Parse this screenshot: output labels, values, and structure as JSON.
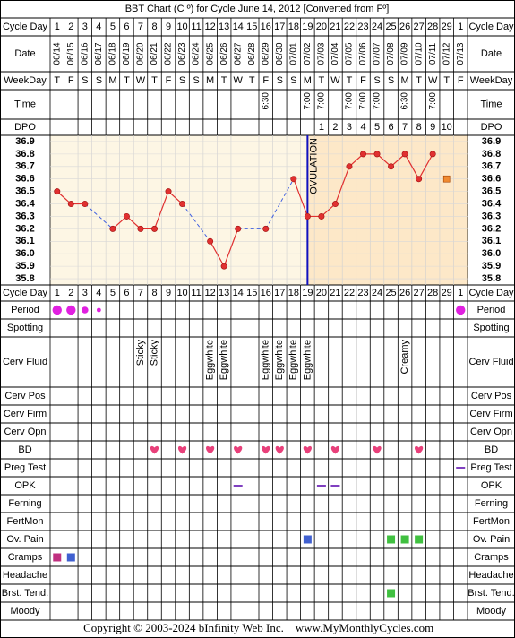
{
  "title": "BBT Chart (C º) for Cycle June 14, 2012  [Converted from Fº]",
  "row_labels": {
    "cycle_day": "Cycle Day",
    "date": "Date",
    "weekday": "WeekDay",
    "time": "Time",
    "dpo": "DPO"
  },
  "cycle_days": [
    1,
    2,
    3,
    4,
    5,
    6,
    7,
    8,
    9,
    10,
    11,
    12,
    13,
    14,
    15,
    16,
    17,
    18,
    19,
    20,
    21,
    22,
    23,
    24,
    25,
    26,
    27,
    28,
    29,
    1
  ],
  "dates": [
    "06/14",
    "06/15",
    "06/16",
    "06/17",
    "06/18",
    "06/19",
    "06/20",
    "06/21",
    "06/22",
    "06/23",
    "06/24",
    "06/25",
    "06/26",
    "06/27",
    "06/28",
    "06/29",
    "06/30",
    "07/01",
    "07/02",
    "07/03",
    "07/04",
    "07/05",
    "07/06",
    "07/07",
    "07/08",
    "07/09",
    "07/10",
    "07/11",
    "07/12",
    "07/13"
  ],
  "weekdays": [
    "T",
    "F",
    "S",
    "S",
    "M",
    "T",
    "W",
    "T",
    "F",
    "S",
    "S",
    "M",
    "T",
    "W",
    "T",
    "F",
    "S",
    "S",
    "M",
    "T",
    "W",
    "T",
    "F",
    "S",
    "S",
    "M",
    "T",
    "W",
    "T",
    "F"
  ],
  "times": [
    null,
    null,
    null,
    null,
    null,
    null,
    null,
    null,
    null,
    null,
    null,
    null,
    null,
    null,
    null,
    "6:30",
    null,
    null,
    "7:00",
    "7:00",
    null,
    "7:00",
    "7:00",
    "7:00",
    null,
    "6:30",
    null,
    "7:00",
    null,
    null
  ],
  "dpo": [
    null,
    null,
    null,
    null,
    null,
    null,
    null,
    null,
    null,
    null,
    null,
    null,
    null,
    null,
    null,
    null,
    null,
    null,
    null,
    1,
    2,
    3,
    4,
    5,
    6,
    7,
    8,
    9,
    10,
    null
  ],
  "chart_data": {
    "type": "line",
    "series": [
      {
        "color": "#e03030",
        "values": [
          36.5,
          36.4,
          36.4,
          null,
          36.2,
          36.3,
          36.2,
          36.2,
          36.5,
          36.4,
          null,
          36.1,
          35.9,
          36.2,
          null,
          36.2,
          null,
          36.6,
          36.3,
          36.3,
          36.4,
          36.7,
          36.8,
          36.8,
          36.7,
          36.8,
          36.6,
          36.8,
          null,
          null
        ]
      }
    ],
    "excluded": {
      "color": "#f08a30",
      "values": [
        null,
        null,
        null,
        null,
        null,
        null,
        null,
        null,
        null,
        null,
        null,
        null,
        null,
        null,
        null,
        null,
        null,
        null,
        null,
        null,
        null,
        null,
        null,
        null,
        null,
        null,
        null,
        null,
        36.6,
        null
      ]
    },
    "ylim": [
      35.75,
      36.95
    ],
    "yticks": [
      36.9,
      36.8,
      36.7,
      36.6,
      36.5,
      36.4,
      36.3,
      36.2,
      36.1,
      {
        "value": 36,
        "label": "36.0"
      },
      35.9,
      35.8
    ],
    "grid": true,
    "ovulation": {
      "label": "OVULATION",
      "cycle_day": 19,
      "color": "#1010c0"
    }
  },
  "rows": [
    {
      "label": "Period",
      "marker": "dot",
      "color": "#e020e0",
      "cells": [
        3,
        3,
        2,
        1,
        null,
        null,
        null,
        null,
        null,
        null,
        null,
        null,
        null,
        null,
        null,
        null,
        null,
        null,
        null,
        null,
        null,
        null,
        null,
        null,
        null,
        null,
        null,
        null,
        null,
        3
      ]
    },
    {
      "label": "Spotting"
    },
    {
      "label": "Cerv Fluid",
      "marker": "text",
      "cells": [
        null,
        null,
        null,
        null,
        null,
        null,
        "Sticky",
        "Sticky",
        null,
        null,
        null,
        "Eggwhite",
        "Eggwhite",
        null,
        null,
        "Eggwhite",
        "Eggwhite",
        "Eggwhite",
        "Eggwhite",
        null,
        null,
        null,
        null,
        null,
        null,
        "Creamy",
        null,
        null,
        null,
        null
      ]
    },
    {
      "label": "Cerv Pos"
    },
    {
      "label": "Cerv Firm"
    },
    {
      "label": "Cerv Opn"
    },
    {
      "label": "BD",
      "marker": "heart",
      "cells": [
        null,
        null,
        null,
        null,
        null,
        null,
        null,
        "#e8407a",
        null,
        "#e8407a",
        null,
        "#e8407a",
        null,
        "#e8407a",
        null,
        "#e8407a",
        "#e8407a",
        null,
        "#e8407a",
        null,
        "#e8407a",
        null,
        null,
        "#e8407a",
        null,
        null,
        "#e8407a",
        null,
        null,
        null
      ]
    },
    {
      "label": "Preg Test",
      "marker": "dash",
      "cells": [
        null,
        null,
        null,
        null,
        null,
        null,
        null,
        null,
        null,
        null,
        null,
        null,
        null,
        null,
        null,
        null,
        null,
        null,
        null,
        null,
        null,
        null,
        null,
        null,
        null,
        null,
        null,
        null,
        null,
        "#8040c0"
      ]
    },
    {
      "label": "OPK",
      "marker": "dash",
      "cells": [
        null,
        null,
        null,
        null,
        null,
        null,
        null,
        null,
        null,
        null,
        null,
        null,
        null,
        "#8040c0",
        null,
        null,
        null,
        null,
        null,
        "#8040c0",
        "#8040c0",
        null,
        null,
        null,
        null,
        null,
        null,
        null,
        null,
        null
      ]
    },
    {
      "label": "Ferning"
    },
    {
      "label": "FertMon"
    },
    {
      "label": "Ov. Pain",
      "marker": "square",
      "cells": [
        null,
        null,
        null,
        null,
        null,
        null,
        null,
        null,
        null,
        null,
        null,
        null,
        null,
        null,
        null,
        null,
        null,
        null,
        "#4060d0",
        null,
        null,
        null,
        null,
        null,
        "#40c040",
        "#40c040",
        "#40c040",
        null,
        null,
        null
      ]
    },
    {
      "label": "Cramps",
      "marker": "square",
      "cells": [
        "#c03080",
        "#4060d0",
        null,
        null,
        null,
        null,
        null,
        null,
        null,
        null,
        null,
        null,
        null,
        null,
        null,
        null,
        null,
        null,
        null,
        null,
        null,
        null,
        null,
        null,
        null,
        null,
        null,
        null,
        null,
        null
      ]
    },
    {
      "label": "Headache"
    },
    {
      "label": "Brst. Tend.",
      "marker": "square",
      "cells": [
        null,
        null,
        null,
        null,
        null,
        null,
        null,
        null,
        null,
        null,
        null,
        null,
        null,
        null,
        null,
        null,
        null,
        null,
        null,
        null,
        null,
        null,
        null,
        null,
        "#40c040",
        null,
        null,
        null,
        null,
        null
      ]
    },
    {
      "label": "Moody"
    }
  ],
  "copyright": "Copyright © 2003-2024 bInfinity Web Inc.",
  "site": "www.MyMonthlyCycles.com"
}
